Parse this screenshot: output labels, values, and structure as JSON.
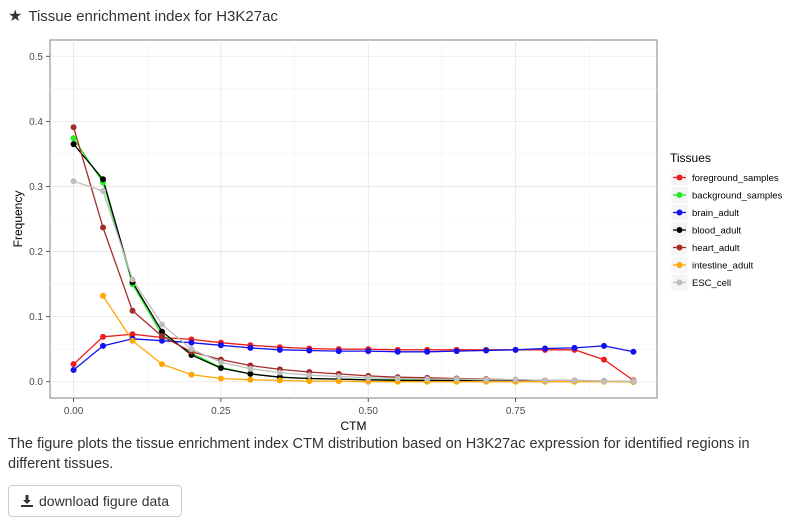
{
  "header": {
    "icon": "star-icon",
    "title": "Tissue enrichment index for H3K27ac"
  },
  "caption": "The figure plots the tissue enrichment index CTM distribution based on H3K27ac expression for identified regions in different tissues.",
  "download": {
    "icon": "download-icon",
    "label": "download figure data"
  },
  "chart_data": {
    "type": "line",
    "title": "",
    "xlabel": "CTM",
    "ylabel": "Frequency",
    "xlim": [
      -0.04,
      0.99
    ],
    "ylim": [
      -0.025,
      0.525
    ],
    "xticks": [
      0.0,
      0.25,
      0.5,
      0.75
    ],
    "xtick_labels": [
      "0.00",
      "0.25",
      "0.50",
      "0.75"
    ],
    "yticks": [
      0.0,
      0.1,
      0.2,
      0.3,
      0.4,
      0.5
    ],
    "ytick_labels": [
      "0.0",
      "0.1",
      "0.2",
      "0.3",
      "0.4",
      "0.5"
    ],
    "grid": true,
    "legend_title": "Tissues",
    "legend_position": "right",
    "series": [
      {
        "name": "foreground_samples",
        "color": "#ee1c1c",
        "x": [
          0.0,
          0.05,
          0.1,
          0.15,
          0.2,
          0.25,
          0.3,
          0.35,
          0.4,
          0.45,
          0.5,
          0.55,
          0.6,
          0.65,
          0.7,
          0.75,
          0.8,
          0.85,
          0.9,
          0.95
        ],
        "y": [
          0.027,
          0.069,
          0.073,
          0.068,
          0.065,
          0.06,
          0.056,
          0.053,
          0.051,
          0.05,
          0.05,
          0.049,
          0.049,
          0.049,
          0.049,
          0.049,
          0.049,
          0.049,
          0.034,
          0.002
        ]
      },
      {
        "name": "background_samples",
        "color": "#22ee22",
        "x": [
          0.0,
          0.05,
          0.1,
          0.15,
          0.2,
          0.25,
          0.3,
          0.35,
          0.4,
          0.45,
          0.5,
          0.55,
          0.6,
          0.65,
          0.7,
          0.75,
          0.8,
          0.85,
          0.9,
          0.95
        ],
        "y": [
          0.374,
          0.306,
          0.15,
          0.072,
          0.044,
          0.022,
          0.012,
          0.007,
          0.005,
          0.004,
          0.003,
          0.003,
          0.002,
          0.002,
          0.002,
          0.002,
          0.001,
          0.001,
          0.001,
          0.0
        ]
      },
      {
        "name": "brain_adult",
        "color": "#1111ee",
        "x": [
          0.0,
          0.05,
          0.1,
          0.15,
          0.2,
          0.25,
          0.3,
          0.35,
          0.4,
          0.45,
          0.5,
          0.55,
          0.6,
          0.65,
          0.7,
          0.75,
          0.8,
          0.85,
          0.9,
          0.95
        ],
        "y": [
          0.018,
          0.055,
          0.066,
          0.063,
          0.06,
          0.056,
          0.052,
          0.049,
          0.048,
          0.047,
          0.047,
          0.046,
          0.046,
          0.047,
          0.048,
          0.049,
          0.051,
          0.052,
          0.055,
          0.046
        ]
      },
      {
        "name": "blood_adult",
        "color": "#000000",
        "x": [
          0.0,
          0.05,
          0.1,
          0.15,
          0.2,
          0.25,
          0.3,
          0.35,
          0.4,
          0.45,
          0.5,
          0.55,
          0.6,
          0.65,
          0.7,
          0.75,
          0.8,
          0.85,
          0.9,
          0.95
        ],
        "y": [
          0.365,
          0.311,
          0.153,
          0.077,
          0.041,
          0.021,
          0.012,
          0.007,
          0.005,
          0.004,
          0.003,
          0.002,
          0.002,
          0.002,
          0.001,
          0.001,
          0.001,
          0.001,
          0.001,
          0.0
        ]
      },
      {
        "name": "heart_adult",
        "color": "#a52a2a",
        "x": [
          0.0,
          0.05,
          0.1,
          0.15,
          0.2,
          0.25,
          0.3,
          0.35,
          0.4,
          0.45,
          0.5,
          0.55,
          0.6,
          0.65,
          0.7,
          0.75,
          0.8,
          0.85,
          0.9,
          0.95
        ],
        "y": [
          0.391,
          0.237,
          0.109,
          0.07,
          0.046,
          0.034,
          0.025,
          0.019,
          0.015,
          0.012,
          0.009,
          0.007,
          0.006,
          0.005,
          0.004,
          0.003,
          0.002,
          0.002,
          0.001,
          0.001
        ]
      },
      {
        "name": "intestine_adult",
        "color": "#ffa500",
        "x": [
          0.05,
          0.1,
          0.15,
          0.2,
          0.25,
          0.3,
          0.35,
          0.4,
          0.45,
          0.5,
          0.55,
          0.6,
          0.65,
          0.7,
          0.75,
          0.8,
          0.85,
          0.9,
          0.95
        ],
        "y": [
          0.132,
          0.063,
          0.027,
          0.011,
          0.005,
          0.003,
          0.002,
          0.001,
          0.001,
          0.0,
          0.0,
          0.0,
          0.0,
          0.0,
          0.0,
          0.0,
          0.0,
          0.0,
          0.0
        ]
      },
      {
        "name": "ESC_cell",
        "color": "#bebebe",
        "x": [
          0.0,
          0.05,
          0.1,
          0.15,
          0.2,
          0.25,
          0.3,
          0.35,
          0.4,
          0.45,
          0.5,
          0.55,
          0.6,
          0.65,
          0.7,
          0.75,
          0.8,
          0.85,
          0.9,
          0.95
        ],
        "y": [
          0.308,
          0.293,
          0.157,
          0.088,
          0.05,
          0.03,
          0.02,
          0.014,
          0.01,
          0.008,
          0.006,
          0.005,
          0.004,
          0.004,
          0.003,
          0.003,
          0.002,
          0.002,
          0.001,
          0.001
        ]
      }
    ]
  }
}
